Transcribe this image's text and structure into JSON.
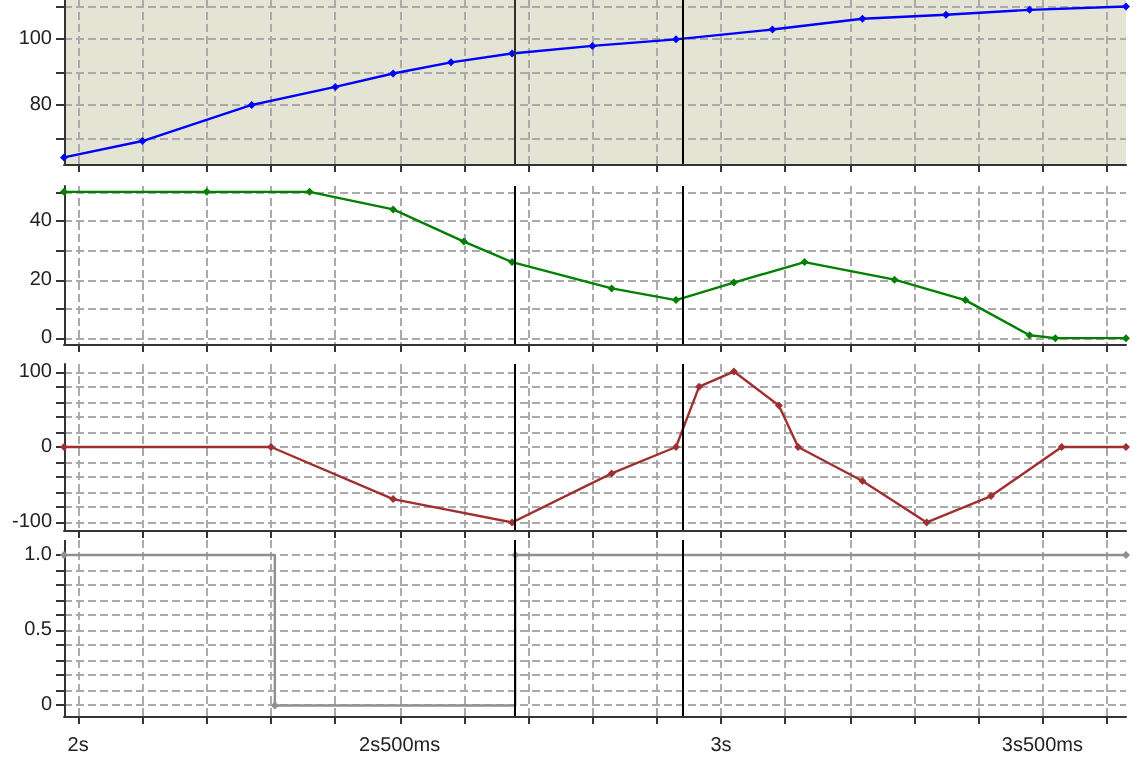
{
  "chart_data": [
    {
      "type": "line",
      "color": "#0000ff",
      "marker": "diamond",
      "grid": true,
      "tick_labels": "y",
      "xlim": [
        1.978,
        3.63
      ],
      "ylim": [
        62,
        112
      ],
      "xticks": [
        {
          "value": 2,
          "label": null
        },
        {
          "value": 2.1,
          "label": null
        },
        {
          "value": 2.2,
          "label": null
        },
        {
          "value": 2.3,
          "label": null
        },
        {
          "value": 2.4,
          "label": null
        },
        {
          "value": 2.5,
          "label": null
        },
        {
          "value": 2.6,
          "label": null
        },
        {
          "value": 2.7,
          "label": null
        },
        {
          "value": 2.8,
          "label": null
        },
        {
          "value": 2.9,
          "label": null
        },
        {
          "value": 3,
          "label": null
        },
        {
          "value": 3.1,
          "label": null
        },
        {
          "value": 3.2,
          "label": null
        },
        {
          "value": 3.3,
          "label": null
        },
        {
          "value": 3.4,
          "label": null
        },
        {
          "value": 3.5,
          "label": null
        },
        {
          "value": 3.6,
          "label": null
        }
      ],
      "yticks": [
        {
          "value": 70,
          "label": null
        },
        80,
        {
          "value": 90,
          "label": null
        },
        100,
        {
          "value": 110,
          "label": null
        }
      ],
      "x": [
        1.978,
        2.1,
        2.27,
        2.4,
        2.49,
        2.58,
        2.675,
        2.8,
        2.93,
        3.08,
        3.22,
        3.35,
        3.48,
        3.63
      ],
      "values": [
        64,
        69,
        80,
        85.5,
        89.6,
        93,
        95.7,
        98,
        100,
        103,
        106.3,
        107.5,
        109,
        110
      ],
      "ref_lines": [
        {
          "axis": "x",
          "value": 2.68,
          "color": "#303030"
        },
        {
          "axis": "x",
          "value": 2.94,
          "color": "#000000"
        }
      ]
    },
    {
      "type": "line",
      "color": "#008000",
      "marker": "diamond",
      "grid": true,
      "tick_labels": "y",
      "xlim": [
        1.978,
        3.63
      ],
      "ylim": [
        -2,
        52
      ],
      "xticks": [
        {
          "value": 2,
          "label": null
        },
        {
          "value": 2.1,
          "label": null
        },
        {
          "value": 2.2,
          "label": null
        },
        {
          "value": 2.3,
          "label": null
        },
        {
          "value": 2.4,
          "label": null
        },
        {
          "value": 2.5,
          "label": null
        },
        {
          "value": 2.6,
          "label": null
        },
        {
          "value": 2.7,
          "label": null
        },
        {
          "value": 2.8,
          "label": null
        },
        {
          "value": 2.9,
          "label": null
        },
        {
          "value": 3,
          "label": null
        },
        {
          "value": 3.1,
          "label": null
        },
        {
          "value": 3.2,
          "label": null
        },
        {
          "value": 3.3,
          "label": null
        },
        {
          "value": 3.4,
          "label": null
        },
        {
          "value": 3.5,
          "label": null
        },
        {
          "value": 3.6,
          "label": null
        }
      ],
      "yticks": [
        0,
        {
          "value": 10,
          "label": null
        },
        20,
        {
          "value": 30,
          "label": null
        },
        40,
        {
          "value": 50,
          "label": null
        }
      ],
      "x": [
        1.978,
        2.2,
        2.36,
        2.49,
        2.6,
        2.675,
        2.83,
        2.93,
        3.02,
        3.13,
        3.27,
        3.38,
        3.48,
        3.52,
        3.63
      ],
      "values": [
        50,
        50,
        50,
        44,
        33,
        26,
        17,
        13,
        19,
        26,
        20,
        13,
        1,
        0,
        0
      ],
      "ref_lines": [
        {
          "axis": "x",
          "value": 2.68,
          "color": "#000000"
        },
        {
          "axis": "x",
          "value": 2.94,
          "color": "#000000"
        }
      ]
    },
    {
      "type": "line",
      "color": "#a03030",
      "marker": "diamond",
      "grid": true,
      "tick_labels": "y",
      "xlim": [
        1.978,
        3.63
      ],
      "ylim": [
        -110,
        110
      ],
      "xticks": [
        {
          "value": 2,
          "label": null
        },
        {
          "value": 2.1,
          "label": null
        },
        {
          "value": 2.2,
          "label": null
        },
        {
          "value": 2.3,
          "label": null
        },
        {
          "value": 2.4,
          "label": null
        },
        {
          "value": 2.5,
          "label": null
        },
        {
          "value": 2.6,
          "label": null
        },
        {
          "value": 2.7,
          "label": null
        },
        {
          "value": 2.8,
          "label": null
        },
        {
          "value": 2.9,
          "label": null
        },
        {
          "value": 3,
          "label": null
        },
        {
          "value": 3.1,
          "label": null
        },
        {
          "value": 3.2,
          "label": null
        },
        {
          "value": 3.3,
          "label": null
        },
        {
          "value": 3.4,
          "label": null
        },
        {
          "value": 3.5,
          "label": null
        },
        {
          "value": 3.6,
          "label": null
        }
      ],
      "yticks": [
        -100,
        {
          "value": -80,
          "label": null
        },
        {
          "value": -60,
          "label": null
        },
        {
          "value": -40,
          "label": null
        },
        {
          "value": -20,
          "label": null
        },
        0,
        {
          "value": 20,
          "label": null
        },
        {
          "value": 40,
          "label": null
        },
        {
          "value": 60,
          "label": null
        },
        {
          "value": 80,
          "label": null
        },
        100
      ],
      "x": [
        1.978,
        2.3,
        2.49,
        2.675,
        2.83,
        2.93,
        2.966,
        3.02,
        3.09,
        3.12,
        3.22,
        3.32,
        3.42,
        3.53,
        3.63
      ],
      "values": [
        0,
        0,
        -69,
        -100,
        -35,
        0,
        80,
        100,
        55,
        0,
        -45,
        -100,
        -65,
        0,
        0
      ],
      "ref_lines": [
        {
          "axis": "x",
          "value": 2.68,
          "color": "#000000"
        },
        {
          "axis": "x",
          "value": 2.94,
          "color": "#000000"
        }
      ]
    },
    {
      "type": "step",
      "color": "#909090",
      "marker": "diamond",
      "grid": true,
      "xlim": [
        1.978,
        3.63
      ],
      "ylim": [
        -0.07,
        1.1
      ],
      "xticks": [
        {
          "value": 2,
          "label": "2s"
        },
        {
          "value": 2.1,
          "label": null
        },
        {
          "value": 2.2,
          "label": null
        },
        {
          "value": 2.3,
          "label": null
        },
        {
          "value": 2.4,
          "label": null
        },
        {
          "value": 2.5,
          "label": "2s500ms"
        },
        {
          "value": 2.6,
          "label": null
        },
        {
          "value": 2.7,
          "label": null
        },
        {
          "value": 2.8,
          "label": null
        },
        {
          "value": 2.9,
          "label": null
        },
        {
          "value": 3,
          "label": "3s"
        },
        {
          "value": 3.1,
          "label": null
        },
        {
          "value": 3.2,
          "label": null
        },
        {
          "value": 3.3,
          "label": null
        },
        {
          "value": 3.4,
          "label": null
        },
        {
          "value": 3.5,
          "label": "3s500ms"
        },
        {
          "value": 3.6,
          "label": null
        }
      ],
      "yticks": [
        0,
        {
          "value": 0.1,
          "label": null
        },
        {
          "value": 0.2,
          "label": null
        },
        {
          "value": 0.3,
          "label": null
        },
        {
          "value": 0.4,
          "label": null
        },
        0.5,
        {
          "value": 0.6,
          "label": null
        },
        {
          "value": 0.7,
          "label": null
        },
        {
          "value": 0.8,
          "label": null
        },
        {
          "value": 0.9,
          "label": null
        },
        {
          "value": 1,
          "label": "1.0"
        }
      ],
      "x": [
        1.978,
        2.306,
        2.68,
        3.63
      ],
      "values": [
        1,
        0,
        1,
        1
      ],
      "ref_lines": [
        {
          "axis": "x",
          "value": 2.68,
          "color": "#000000"
        },
        {
          "axis": "x",
          "value": 2.94,
          "color": "#000000"
        }
      ]
    }
  ]
}
